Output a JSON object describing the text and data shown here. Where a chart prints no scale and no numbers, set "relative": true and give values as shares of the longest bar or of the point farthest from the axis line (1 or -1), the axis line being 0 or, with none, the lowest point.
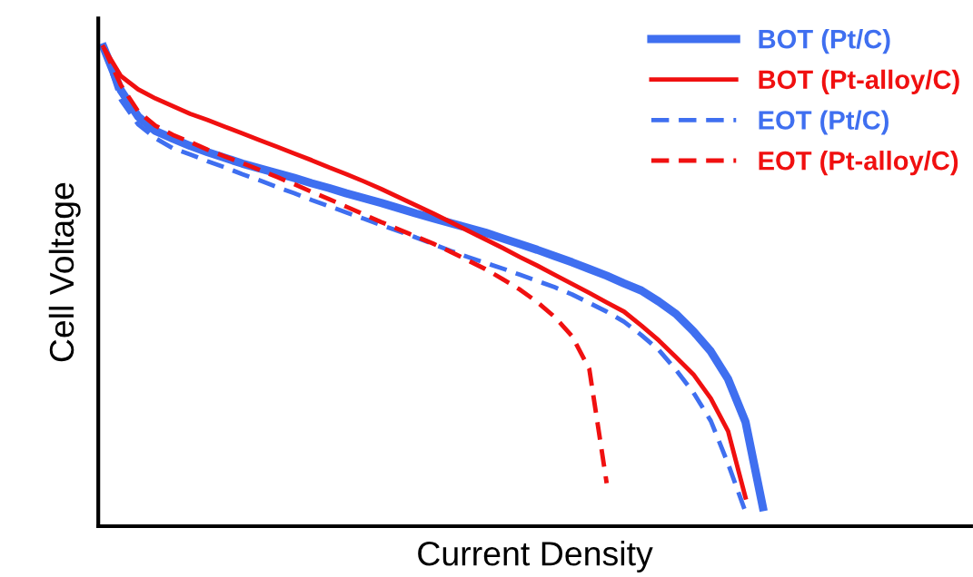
{
  "chart_data": {
    "type": "line",
    "relative": true,
    "xlabel": "Current Density",
    "ylabel": "Cell Voltage",
    "legend": "top right",
    "marker": "none",
    "categories": [
      null,
      null,
      null,
      null,
      null,
      null,
      null,
      null,
      null,
      null,
      null,
      null,
      null,
      null,
      null,
      null,
      null,
      null,
      null,
      null,
      null,
      null,
      null,
      null,
      null,
      null,
      null,
      null,
      null,
      null,
      null,
      null,
      null,
      null,
      null,
      null,
      null,
      null,
      null
    ],
    "series": [
      {
        "name": "BOT (Pt/C)",
        "color": "#3f6ff0",
        "line_style": "solid",
        "values": [
          1.0,
          0.91,
          0.855,
          0.825,
          0.809,
          0.794,
          0.781,
          0.769,
          0.757,
          0.747,
          0.737,
          0.727,
          0.716,
          0.706,
          0.695,
          0.685,
          0.675,
          0.664,
          0.653,
          0.643,
          0.633,
          0.623,
          0.613,
          0.601,
          0.589,
          0.577,
          0.564,
          0.551,
          0.537,
          0.523,
          0.507,
          0.492,
          0.469,
          0.443,
          0.407,
          0.365,
          0.307,
          0.218,
          0.04
        ]
      },
      {
        "name": "BOT (Pt-alloy/C)",
        "color": "#f01010",
        "line_style": "solid",
        "values": [
          1.0,
          0.94,
          0.912,
          0.893,
          0.877,
          0.861,
          0.848,
          0.834,
          0.82,
          0.806,
          0.792,
          0.778,
          0.764,
          0.749,
          0.735,
          0.72,
          0.704,
          0.687,
          0.67,
          0.653,
          0.635,
          0.617,
          0.599,
          0.581,
          0.562,
          0.544,
          0.525,
          0.506,
          0.487,
          0.467,
          0.448,
          0.419,
          0.388,
          0.353,
          0.317,
          0.267,
          0.198,
          0.06,
          null
        ]
      },
      {
        "name": "EOT (Pt/C)",
        "color": "#3f6ff0",
        "line_style": "dashed",
        "values": [
          1.0,
          0.89,
          0.839,
          0.81,
          0.789,
          0.776,
          0.762,
          0.749,
          0.735,
          0.722,
          0.708,
          0.695,
          0.681,
          0.668,
          0.655,
          0.642,
          0.629,
          0.616,
          0.603,
          0.589,
          0.575,
          0.562,
          0.55,
          0.538,
          0.525,
          0.512,
          0.499,
          0.484,
          0.466,
          0.448,
          0.427,
          0.399,
          0.368,
          0.326,
          0.279,
          0.22,
          0.13,
          0.03,
          null
        ]
      },
      {
        "name": "EOT (Pt-alloy/C)",
        "color": "#f01010",
        "line_style": "dashed",
        "values": [
          1.0,
          0.921,
          0.866,
          0.836,
          0.817,
          0.802,
          0.786,
          0.772,
          0.758,
          0.744,
          0.729,
          0.714,
          0.698,
          0.683,
          0.667,
          0.651,
          0.635,
          0.62,
          0.605,
          0.59,
          0.573,
          0.555,
          0.537,
          0.516,
          0.494,
          0.468,
          0.437,
          0.397,
          0.328,
          0.09,
          null,
          null,
          null,
          null,
          null,
          null,
          null,
          null,
          null
        ]
      }
    ]
  }
}
